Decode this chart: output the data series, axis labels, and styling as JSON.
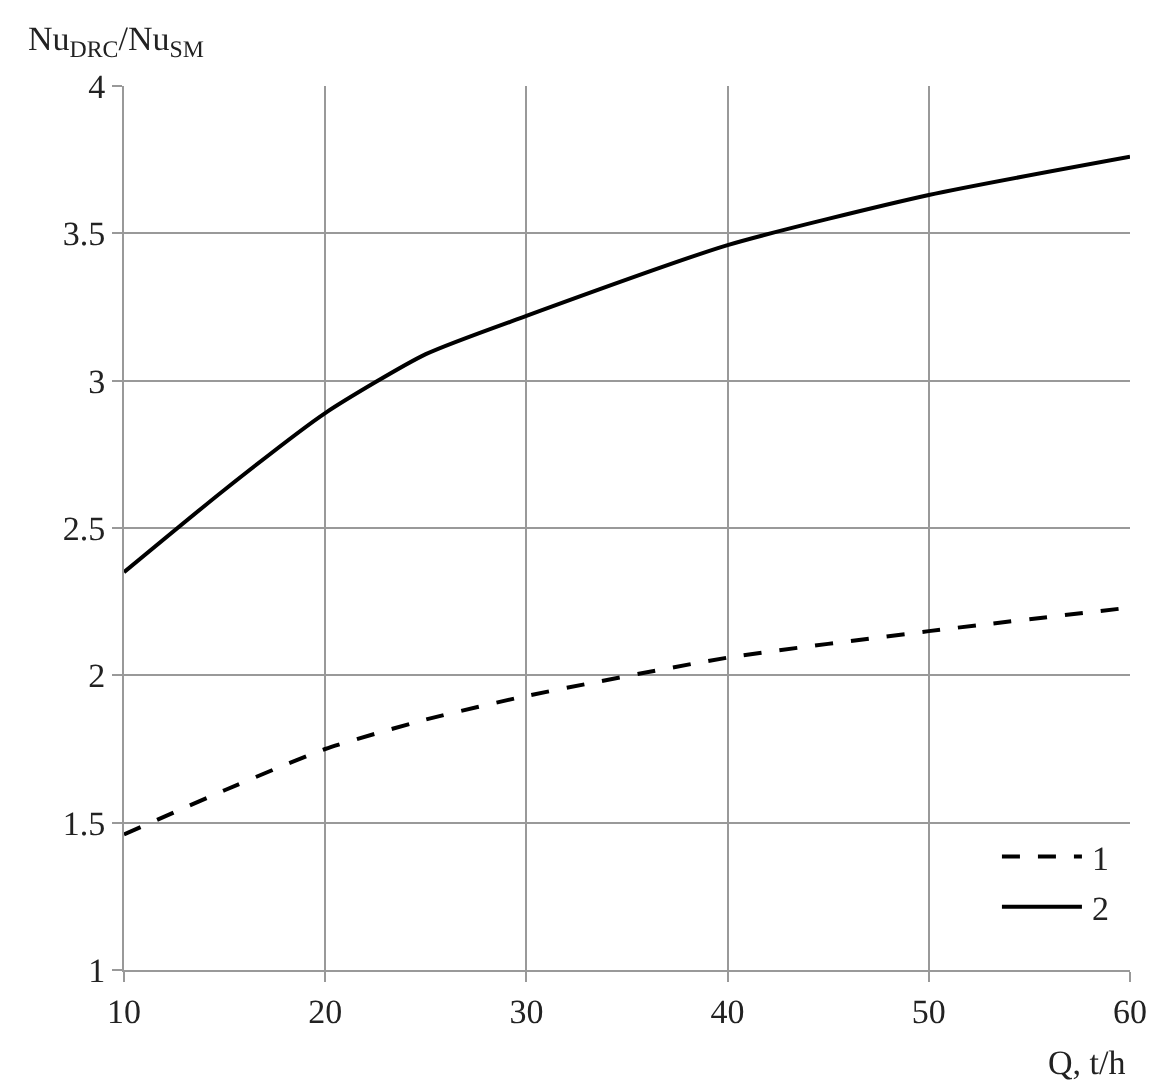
{
  "chart_data": {
    "type": "line",
    "xlabel": "Q, t/h",
    "ylabel": "Nu$_{DRC}$/Nu$_{SM}$",
    "x": [
      10,
      15,
      20,
      25,
      30,
      40,
      50,
      60
    ],
    "series": [
      {
        "name": "1",
        "color": "#000000",
        "line_style": "dashed",
        "values": [
          1.46,
          1.61,
          1.75,
          1.85,
          1.93,
          2.06,
          2.15,
          2.23
        ]
      },
      {
        "name": "2",
        "color": "#000000",
        "line_style": "solid",
        "values": [
          2.35,
          2.63,
          2.89,
          3.09,
          3.22,
          3.46,
          3.63,
          3.76
        ]
      }
    ],
    "xlim": [
      10,
      60
    ],
    "xticks": [
      10,
      20,
      30,
      40,
      50,
      60
    ],
    "ylim": [
      1,
      4
    ],
    "yticks": [
      1,
      1.5,
      2,
      2.5,
      3,
      3.5,
      4
    ],
    "grid": true,
    "legend": "bottom right",
    "marker": "none"
  }
}
